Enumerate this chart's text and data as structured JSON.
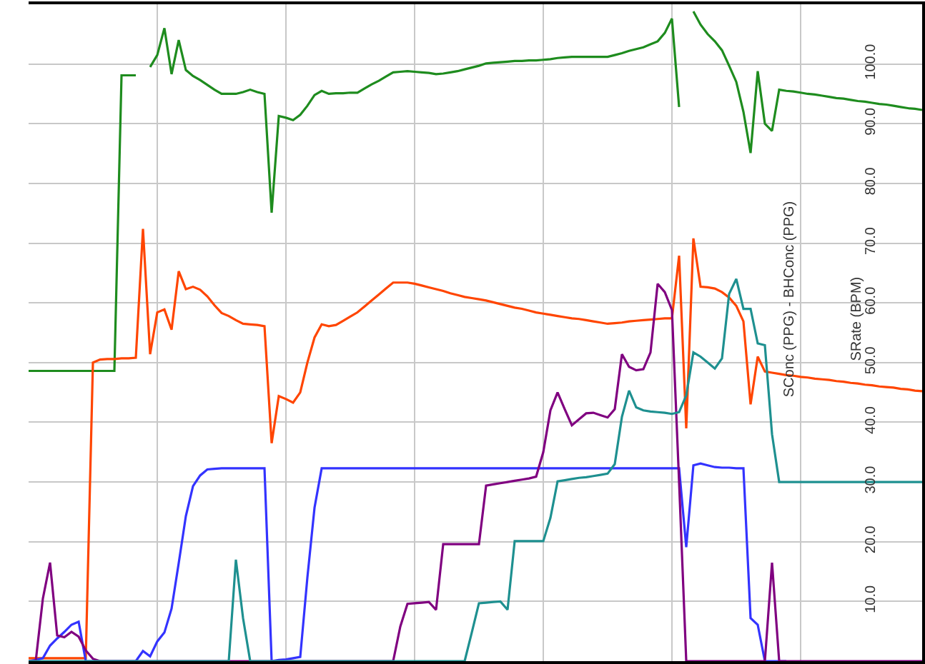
{
  "chart_data": {
    "type": "line",
    "ylabel": "SConc (PPG) - BHConc (PPG)",
    "annotations": [
      "SRate (BPM)"
    ],
    "categories": [
      null,
      null,
      null,
      null,
      null,
      null,
      null,
      null,
      null,
      null,
      null,
      null,
      null,
      null,
      null,
      null,
      null,
      null,
      null,
      null,
      null,
      null,
      null,
      null,
      null,
      null,
      null,
      null,
      null,
      null,
      null,
      null,
      null,
      null,
      null,
      null,
      null,
      null,
      null,
      null,
      null,
      null,
      null,
      null,
      null,
      null,
      null,
      null,
      null,
      null,
      null,
      null,
      null,
      null,
      null,
      null,
      null,
      null,
      null,
      null,
      null,
      null,
      null,
      null,
      null,
      null,
      null,
      null,
      null,
      null,
      null,
      null,
      null,
      null,
      null,
      null,
      null,
      null,
      null,
      null,
      null,
      null,
      null,
      null,
      null,
      null,
      null,
      null,
      null,
      null,
      null,
      null,
      null,
      null,
      null,
      null,
      null,
      null,
      null,
      null,
      null,
      null,
      null,
      null,
      null,
      null,
      null,
      null,
      null,
      null,
      null,
      null,
      null,
      null,
      null,
      null,
      null,
      null,
      null,
      null,
      null,
      null,
      null,
      null,
      null,
      null
    ],
    "ylim": [
      0,
      110
    ],
    "yticks": [
      {
        "value": 10,
        "label": "10.0"
      },
      {
        "value": 20,
        "label": "20.0"
      },
      {
        "value": 30,
        "label": "30.0"
      },
      {
        "value": 40,
        "label": "40.0"
      },
      {
        "value": 50,
        "label": "50.0"
      },
      {
        "value": 60,
        "label": "60.0"
      },
      {
        "value": 70,
        "label": "70.0"
      },
      {
        "value": 80,
        "label": "80.0"
      },
      {
        "value": 90,
        "label": "90.0"
      },
      {
        "value": 100,
        "label": "100.0"
      }
    ],
    "grid": true,
    "marker": "none",
    "line_style": "solid",
    "series": [
      {
        "color": "#1e8c1e",
        "values": [
          48.6,
          48.6,
          48.6,
          48.6,
          48.6,
          48.6,
          48.6,
          48.6,
          48.6,
          48.6,
          48.6,
          48.6,
          48.6,
          98.1,
          98.1,
          98.1,
          null,
          99.5,
          101.5,
          106,
          98.3,
          104,
          99,
          98,
          97.3,
          96.5,
          95.7,
          95,
          95,
          95,
          95.3,
          95.7,
          95.3,
          95,
          75.1,
          91.3,
          91,
          90.6,
          91.5,
          93,
          94.8,
          95.5,
          95,
          95.1,
          95.1,
          95.2,
          95.2,
          95.9,
          96.6,
          97.2,
          97.9,
          98.6,
          98.7,
          98.8,
          98.7,
          98.6,
          98.5,
          98.3,
          98.4,
          98.6,
          98.8,
          99.1,
          99.4,
          99.7,
          100.1,
          100.2,
          100.3,
          100.4,
          100.5,
          100.5,
          100.6,
          100.6,
          100.7,
          100.8,
          101,
          101.1,
          101.2,
          101.2,
          101.2,
          101.2,
          101.2,
          101.2,
          101.5,
          101.8,
          102.2,
          102.5,
          102.8,
          103.3,
          103.8,
          105.2,
          107.6,
          92.8,
          null,
          108.8,
          106.6,
          105,
          103.8,
          102.3,
          99.7,
          97,
          92,
          85.1,
          98.8,
          90,
          88.8,
          95.7,
          95.5,
          95.4,
          95.2,
          95,
          94.9,
          94.7,
          94.5,
          94.3,
          94.2,
          94,
          93.8,
          93.7,
          93.5,
          93.3,
          93.2,
          93,
          92.8,
          92.6,
          92.5,
          92.3
        ]
      },
      {
        "color": "#ff4500",
        "values": [
          0.5,
          0.5,
          0.5,
          0.5,
          0.5,
          0.5,
          0.5,
          0.5,
          0.5,
          50,
          50.5,
          50.6,
          50.6,
          50.7,
          50.7,
          50.8,
          72.4,
          51.4,
          58.4,
          58.9,
          55.5,
          65.3,
          62.3,
          62.7,
          62.2,
          61.1,
          59.6,
          58.3,
          57.8,
          57.1,
          56.5,
          56.4,
          56.3,
          56.1,
          36.5,
          44.4,
          43.9,
          43.3,
          45,
          50,
          54.2,
          56.4,
          56.1,
          56.3,
          57,
          57.7,
          58.4,
          59.4,
          60.4,
          61.4,
          62.4,
          63.4,
          63.4,
          63.4,
          63.2,
          62.9,
          62.6,
          62.3,
          62,
          61.6,
          61.3,
          61,
          60.8,
          60.6,
          60.4,
          60.1,
          59.8,
          59.5,
          59.2,
          59,
          58.7,
          58.4,
          58.2,
          58,
          57.8,
          57.6,
          57.4,
          57.3,
          57.1,
          56.9,
          56.7,
          56.5,
          56.6,
          56.7,
          56.9,
          57,
          57.1,
          57.2,
          57.3,
          57.4,
          57.4,
          67.9,
          39,
          70.8,
          62.7,
          62.6,
          62.4,
          61.8,
          60.9,
          59.5,
          56.9,
          43,
          51,
          48.5,
          48.3,
          48.1,
          47.9,
          47.8,
          47.6,
          47.5,
          47.3,
          47.2,
          47.1,
          46.9,
          46.8,
          46.6,
          46.5,
          46.3,
          46.2,
          46,
          45.9,
          45.8,
          45.6,
          45.5,
          45.3,
          45.2
        ]
      },
      {
        "color": "#3333ff",
        "values": [
          0,
          0.2,
          0.5,
          2.6,
          3.8,
          4.9,
          6.1,
          6.6,
          0,
          0,
          0,
          0,
          0,
          0,
          0,
          0,
          1.7,
          0.8,
          3.3,
          4.8,
          8.8,
          16.4,
          24.3,
          29.3,
          31.1,
          32.1,
          32.2,
          32.3,
          32.3,
          32.3,
          32.3,
          32.3,
          32.3,
          32.3,
          0,
          0.2,
          0.3,
          0.5,
          0.7,
          14,
          25.7,
          32.3,
          32.3,
          32.3,
          32.3,
          32.3,
          32.3,
          32.3,
          32.3,
          32.3,
          32.3,
          32.3,
          32.3,
          32.3,
          32.3,
          32.3,
          32.3,
          32.3,
          32.3,
          32.3,
          32.3,
          32.3,
          32.3,
          32.3,
          32.3,
          32.3,
          32.3,
          32.3,
          32.3,
          32.3,
          32.3,
          32.3,
          32.3,
          32.3,
          32.3,
          32.3,
          32.3,
          32.3,
          32.3,
          32.3,
          32.3,
          32.3,
          32.3,
          32.3,
          32.3,
          32.3,
          32.3,
          32.3,
          32.3,
          32.3,
          32.3,
          32.3,
          19.1,
          32.8,
          33.1,
          32.8,
          32.5,
          32.4,
          32.4,
          32.3,
          32.3,
          7.2,
          6.1,
          0,
          0,
          0,
          0,
          null,
          null,
          null,
          null,
          null,
          null,
          null,
          null,
          null,
          null,
          null,
          null,
          null,
          null,
          null,
          null,
          null,
          null,
          null
        ]
      },
      {
        "color": "#800080",
        "values": [
          0,
          0,
          10.5,
          16.5,
          4.3,
          4,
          4.9,
          4.1,
          1.8,
          0.4,
          0,
          0,
          0,
          0,
          0,
          0,
          0,
          0,
          0,
          0,
          0,
          0,
          0,
          0,
          0,
          0,
          0,
          0,
          0,
          0,
          0,
          0,
          0,
          0,
          0,
          0,
          0,
          0,
          0,
          0,
          0,
          0,
          0,
          0,
          0,
          0,
          0,
          0,
          0,
          0,
          0,
          0,
          5.8,
          9.6,
          9.7,
          9.8,
          9.9,
          8.6,
          19.6,
          19.6,
          19.6,
          19.6,
          19.6,
          19.6,
          29.4,
          29.6,
          29.8,
          30,
          30.2,
          30.4,
          30.6,
          30.9,
          35,
          42,
          45,
          42.2,
          39.5,
          40.5,
          41.5,
          41.6,
          41.2,
          40.8,
          42.2,
          51.4,
          49.3,
          48.7,
          48.9,
          51.7,
          63.2,
          61.8,
          58.8,
          30,
          0,
          0,
          0,
          0,
          0,
          0,
          0,
          0,
          0,
          0,
          0,
          0,
          16.5,
          0,
          0,
          0,
          0,
          0,
          0,
          0,
          0,
          0,
          0,
          0,
          0,
          0,
          0,
          0,
          0,
          0,
          0,
          0,
          0,
          0
        ]
      },
      {
        "color": "#1e9090",
        "values": [
          0,
          0,
          0,
          0,
          0,
          0,
          0,
          0,
          0,
          0,
          0,
          0,
          0,
          0,
          0,
          0,
          0,
          0,
          0,
          0,
          0,
          0,
          0,
          0,
          0,
          0,
          0,
          0,
          0,
          17,
          7.2,
          0,
          0,
          0,
          0,
          0,
          0,
          0,
          0,
          0,
          0,
          0,
          0,
          0,
          0,
          0,
          0,
          0,
          0,
          0,
          0,
          0,
          0,
          0,
          0,
          0,
          0,
          0,
          0,
          0,
          0,
          0,
          4.8,
          9.7,
          9.8,
          9.9,
          10,
          8.6,
          20.1,
          20.1,
          20.1,
          20.1,
          20.1,
          24,
          30.1,
          30.3,
          30.5,
          30.7,
          30.8,
          31,
          31.2,
          31.4,
          33,
          40.9,
          45.3,
          42.5,
          42,
          41.8,
          41.7,
          41.6,
          41.4,
          41.7,
          44.5,
          51.7,
          51,
          50,
          49,
          50.7,
          61.5,
          64,
          59,
          59,
          53.2,
          52.9,
          38,
          30,
          30,
          30,
          30,
          30,
          30,
          30,
          30,
          30,
          30,
          30,
          30,
          30,
          30,
          30,
          30,
          30,
          30,
          30,
          30,
          30
        ]
      }
    ]
  }
}
